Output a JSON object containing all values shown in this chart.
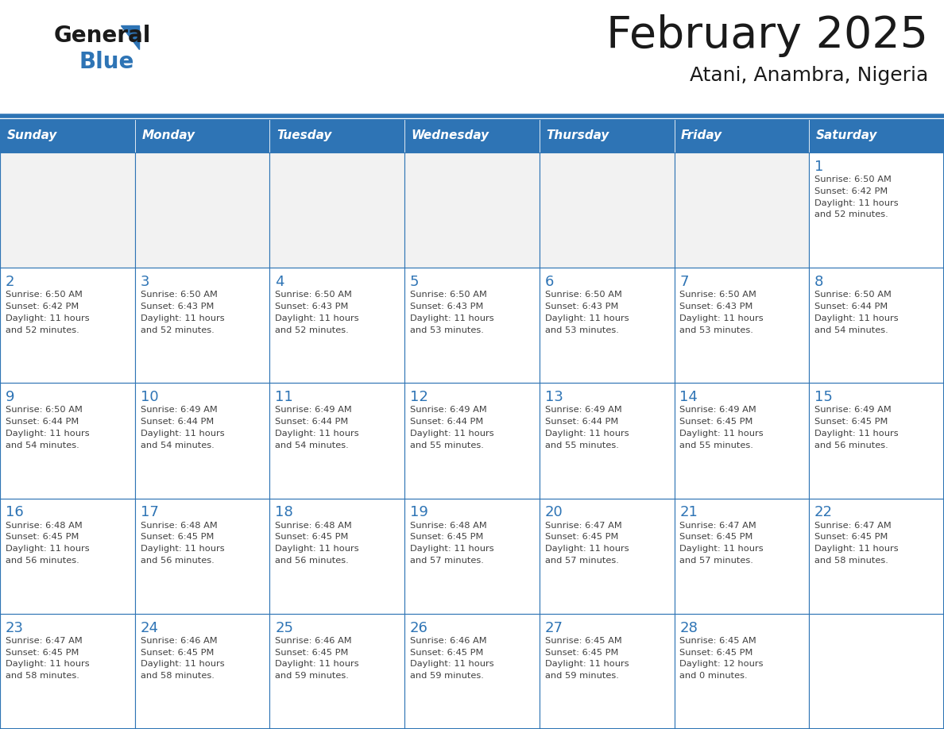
{
  "title": "February 2025",
  "subtitle": "Atani, Anambra, Nigeria",
  "days_of_week": [
    "Sunday",
    "Monday",
    "Tuesday",
    "Wednesday",
    "Thursday",
    "Friday",
    "Saturday"
  ],
  "header_bg": "#2E74B5",
  "header_text": "#FFFFFF",
  "cell_bg_light": "#FFFFFF",
  "cell_bg_gray": "#F2F2F2",
  "border_color": "#2E74B5",
  "day_num_color": "#2E74B5",
  "cell_text_color": "#404040",
  "title_color": "#1a1a1a",
  "logo_black": "#1a1a1a",
  "logo_blue": "#2E74B5",
  "calendar_data": [
    [
      {
        "day": null,
        "sunrise": null,
        "sunset": null,
        "daylight": null
      },
      {
        "day": null,
        "sunrise": null,
        "sunset": null,
        "daylight": null
      },
      {
        "day": null,
        "sunrise": null,
        "sunset": null,
        "daylight": null
      },
      {
        "day": null,
        "sunrise": null,
        "sunset": null,
        "daylight": null
      },
      {
        "day": null,
        "sunrise": null,
        "sunset": null,
        "daylight": null
      },
      {
        "day": null,
        "sunrise": null,
        "sunset": null,
        "daylight": null
      },
      {
        "day": 1,
        "sunrise": "6:50 AM",
        "sunset": "6:42 PM",
        "daylight": "11 hours and 52 minutes."
      }
    ],
    [
      {
        "day": 2,
        "sunrise": "6:50 AM",
        "sunset": "6:42 PM",
        "daylight": "11 hours and 52 minutes."
      },
      {
        "day": 3,
        "sunrise": "6:50 AM",
        "sunset": "6:43 PM",
        "daylight": "11 hours and 52 minutes."
      },
      {
        "day": 4,
        "sunrise": "6:50 AM",
        "sunset": "6:43 PM",
        "daylight": "11 hours and 52 minutes."
      },
      {
        "day": 5,
        "sunrise": "6:50 AM",
        "sunset": "6:43 PM",
        "daylight": "11 hours and 53 minutes."
      },
      {
        "day": 6,
        "sunrise": "6:50 AM",
        "sunset": "6:43 PM",
        "daylight": "11 hours and 53 minutes."
      },
      {
        "day": 7,
        "sunrise": "6:50 AM",
        "sunset": "6:43 PM",
        "daylight": "11 hours and 53 minutes."
      },
      {
        "day": 8,
        "sunrise": "6:50 AM",
        "sunset": "6:44 PM",
        "daylight": "11 hours and 54 minutes."
      }
    ],
    [
      {
        "day": 9,
        "sunrise": "6:50 AM",
        "sunset": "6:44 PM",
        "daylight": "11 hours and 54 minutes."
      },
      {
        "day": 10,
        "sunrise": "6:49 AM",
        "sunset": "6:44 PM",
        "daylight": "11 hours and 54 minutes."
      },
      {
        "day": 11,
        "sunrise": "6:49 AM",
        "sunset": "6:44 PM",
        "daylight": "11 hours and 54 minutes."
      },
      {
        "day": 12,
        "sunrise": "6:49 AM",
        "sunset": "6:44 PM",
        "daylight": "11 hours and 55 minutes."
      },
      {
        "day": 13,
        "sunrise": "6:49 AM",
        "sunset": "6:44 PM",
        "daylight": "11 hours and 55 minutes."
      },
      {
        "day": 14,
        "sunrise": "6:49 AM",
        "sunset": "6:45 PM",
        "daylight": "11 hours and 55 minutes."
      },
      {
        "day": 15,
        "sunrise": "6:49 AM",
        "sunset": "6:45 PM",
        "daylight": "11 hours and 56 minutes."
      }
    ],
    [
      {
        "day": 16,
        "sunrise": "6:48 AM",
        "sunset": "6:45 PM",
        "daylight": "11 hours and 56 minutes."
      },
      {
        "day": 17,
        "sunrise": "6:48 AM",
        "sunset": "6:45 PM",
        "daylight": "11 hours and 56 minutes."
      },
      {
        "day": 18,
        "sunrise": "6:48 AM",
        "sunset": "6:45 PM",
        "daylight": "11 hours and 56 minutes."
      },
      {
        "day": 19,
        "sunrise": "6:48 AM",
        "sunset": "6:45 PM",
        "daylight": "11 hours and 57 minutes."
      },
      {
        "day": 20,
        "sunrise": "6:47 AM",
        "sunset": "6:45 PM",
        "daylight": "11 hours and 57 minutes."
      },
      {
        "day": 21,
        "sunrise": "6:47 AM",
        "sunset": "6:45 PM",
        "daylight": "11 hours and 57 minutes."
      },
      {
        "day": 22,
        "sunrise": "6:47 AM",
        "sunset": "6:45 PM",
        "daylight": "11 hours and 58 minutes."
      }
    ],
    [
      {
        "day": 23,
        "sunrise": "6:47 AM",
        "sunset": "6:45 PM",
        "daylight": "11 hours and 58 minutes."
      },
      {
        "day": 24,
        "sunrise": "6:46 AM",
        "sunset": "6:45 PM",
        "daylight": "11 hours and 58 minutes."
      },
      {
        "day": 25,
        "sunrise": "6:46 AM",
        "sunset": "6:45 PM",
        "daylight": "11 hours and 59 minutes."
      },
      {
        "day": 26,
        "sunrise": "6:46 AM",
        "sunset": "6:45 PM",
        "daylight": "11 hours and 59 minutes."
      },
      {
        "day": 27,
        "sunrise": "6:45 AM",
        "sunset": "6:45 PM",
        "daylight": "11 hours and 59 minutes."
      },
      {
        "day": 28,
        "sunrise": "6:45 AM",
        "sunset": "6:45 PM",
        "daylight": "12 hours and 0 minutes."
      },
      {
        "day": null,
        "sunrise": null,
        "sunset": null,
        "daylight": null
      }
    ]
  ]
}
